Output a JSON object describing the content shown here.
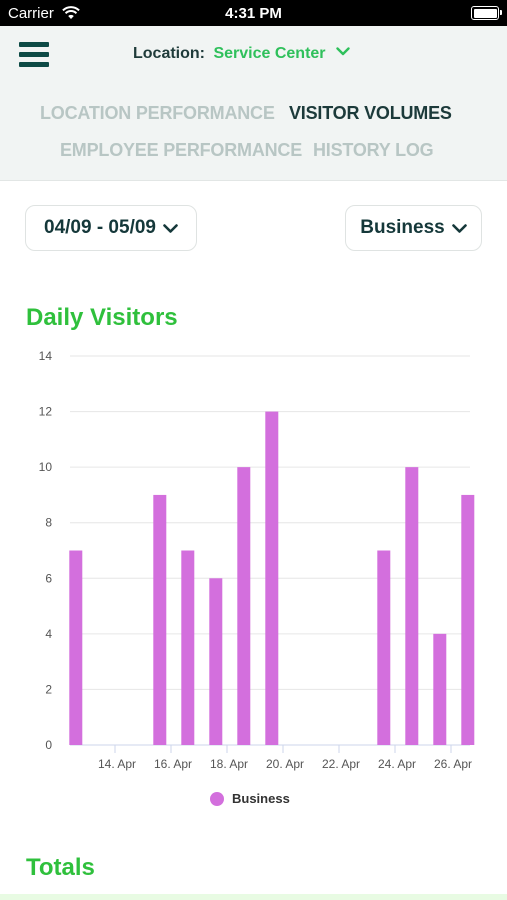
{
  "status_bar": {
    "carrier": "Carrier",
    "time": "4:31 PM"
  },
  "header": {
    "location_label": "Location:",
    "location_value": "Service Center",
    "tabs": [
      {
        "label": "LOCATION PERFORMANCE",
        "active": false
      },
      {
        "label": "VISITOR VOLUMES",
        "active": true
      },
      {
        "label": "EMPLOYEE PERFORMANCE",
        "active": false
      },
      {
        "label": "HISTORY LOG",
        "active": false
      }
    ]
  },
  "filters": {
    "date_range": "04/09 - 05/09",
    "category": "Business"
  },
  "sections": {
    "daily_title": "Daily Visitors",
    "totals_title": "Totals"
  },
  "colors": {
    "accent_green": "#2fc03c",
    "bar": "#d36fdd",
    "dark_teal": "#0d4a45"
  },
  "chart_data": {
    "type": "bar",
    "ylim": [
      0,
      14
    ],
    "yticks": [
      0,
      2,
      4,
      6,
      8,
      10,
      12,
      14
    ],
    "x_range": [
      12,
      26.5
    ],
    "xticks": [
      {
        "x": 14,
        "label": "14. Apr"
      },
      {
        "x": 16,
        "label": "16. Apr"
      },
      {
        "x": 18,
        "label": "18. Apr"
      },
      {
        "x": 20,
        "label": "20. Apr"
      },
      {
        "x": 22,
        "label": "22. Apr"
      },
      {
        "x": 24,
        "label": "24. Apr"
      },
      {
        "x": 26,
        "label": "26. Apr"
      }
    ],
    "series": [
      {
        "name": "Business",
        "points": [
          {
            "x": 12.6,
            "y": 7
          },
          {
            "x": 15.6,
            "y": 9
          },
          {
            "x": 16.6,
            "y": 7
          },
          {
            "x": 17.6,
            "y": 6
          },
          {
            "x": 18.6,
            "y": 10
          },
          {
            "x": 19.6,
            "y": 12
          },
          {
            "x": 23.6,
            "y": 7
          },
          {
            "x": 24.6,
            "y": 10
          },
          {
            "x": 25.6,
            "y": 4
          },
          {
            "x": 26.6,
            "y": 9
          }
        ]
      }
    ]
  }
}
